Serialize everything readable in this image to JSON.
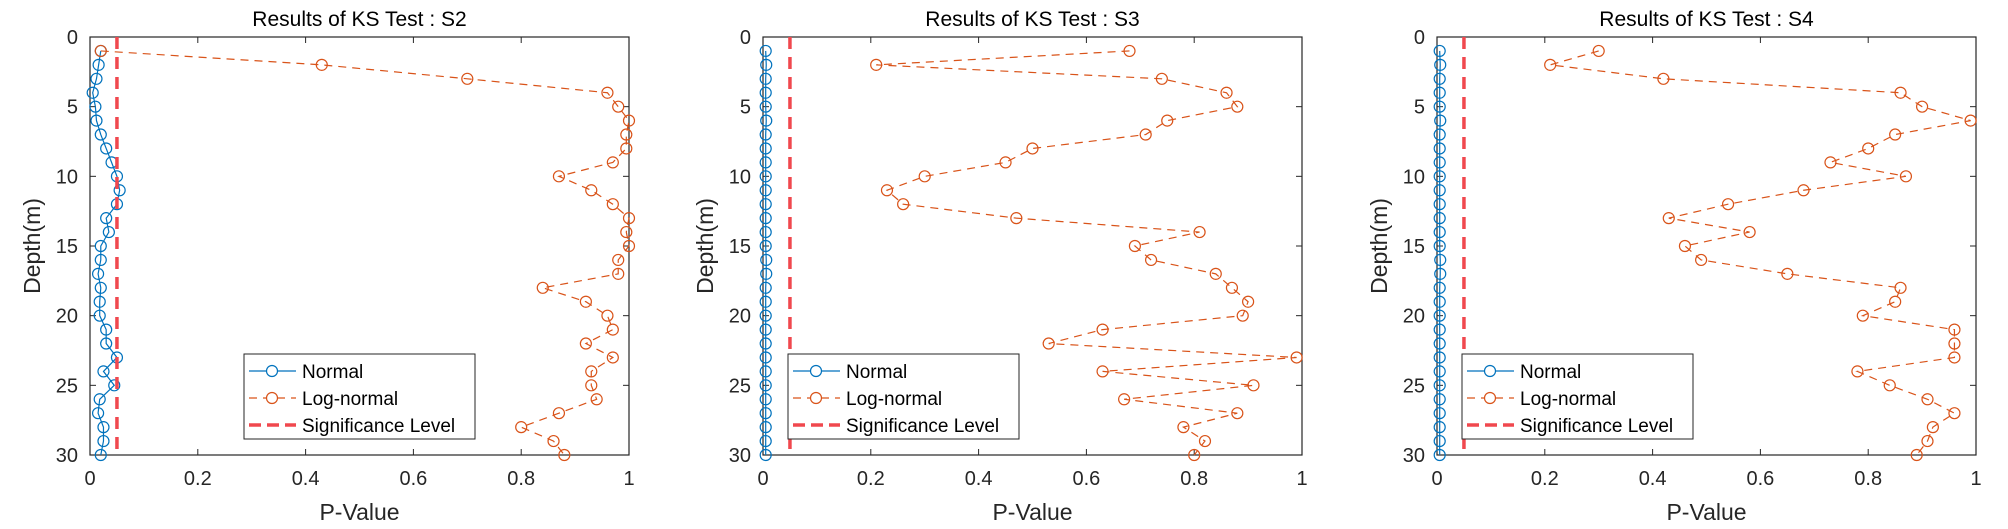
{
  "chart_data": [
    {
      "type": "line",
      "title": "Results of KS Test : S2",
      "xlabel": "P-Value",
      "ylabel": "Depth(m)",
      "xlim": [
        0,
        1
      ],
      "ylim": [
        0,
        30
      ],
      "y_reversed": true,
      "xticks": [
        "0",
        "0.2",
        "0.4",
        "0.6",
        "0.8",
        "1"
      ],
      "yticks": [
        "0",
        "5",
        "10",
        "15",
        "20",
        "25",
        "30"
      ],
      "legend_position": "bottom-center",
      "depth": [
        1,
        2,
        3,
        4,
        5,
        6,
        7,
        8,
        9,
        10,
        11,
        12,
        13,
        14,
        15,
        16,
        17,
        18,
        19,
        20,
        21,
        22,
        23,
        24,
        25,
        26,
        27,
        28,
        29,
        30
      ],
      "series": [
        {
          "name": "Normal",
          "color": "#0072BD",
          "style": "solid-circle",
          "values": [
            0.02,
            0.016,
            0.012,
            0.005,
            0.01,
            0.012,
            0.02,
            0.03,
            0.04,
            0.05,
            0.055,
            0.05,
            0.03,
            0.035,
            0.02,
            0.02,
            0.015,
            0.02,
            0.018,
            0.018,
            0.03,
            0.03,
            0.05,
            0.025,
            0.045,
            0.018,
            0.015,
            0.025,
            0.025,
            0.02
          ]
        },
        {
          "name": "Log-normal",
          "color": "#D95319",
          "style": "dashed-circle",
          "values": [
            0.02,
            0.43,
            0.7,
            0.96,
            0.98,
            1.0,
            0.995,
            0.995,
            0.97,
            0.87,
            0.93,
            0.97,
            1.0,
            0.995,
            1.0,
            0.98,
            0.98,
            0.84,
            0.92,
            0.96,
            0.97,
            0.92,
            0.97,
            0.93,
            0.93,
            0.94,
            0.87,
            0.8,
            0.86,
            0.88
          ]
        },
        {
          "name": "Significance Level",
          "color": "#F0484E",
          "style": "dashed",
          "value": 0.05
        }
      ]
    },
    {
      "type": "line",
      "title": "Results of KS Test : S3",
      "xlabel": "P-Value",
      "ylabel": "Depth(m)",
      "xlim": [
        0,
        1
      ],
      "ylim": [
        0,
        30
      ],
      "y_reversed": true,
      "xticks": [
        "0",
        "0.2",
        "0.4",
        "0.6",
        "0.8",
        "1"
      ],
      "yticks": [
        "0",
        "5",
        "10",
        "15",
        "20",
        "25",
        "30"
      ],
      "legend_position": "bottom-left",
      "depth": [
        1,
        2,
        3,
        4,
        5,
        6,
        7,
        8,
        9,
        10,
        11,
        12,
        13,
        14,
        15,
        16,
        17,
        18,
        19,
        20,
        21,
        22,
        23,
        24,
        25,
        26,
        27,
        28,
        29,
        30
      ],
      "series": [
        {
          "name": "Normal",
          "color": "#0072BD",
          "style": "solid-circle",
          "values": [
            0.005,
            0.006,
            0.005,
            0.005,
            0.005,
            0.006,
            0.005,
            0.005,
            0.005,
            0.005,
            0.005,
            0.005,
            0.005,
            0.005,
            0.005,
            0.006,
            0.006,
            0.005,
            0.005,
            0.005,
            0.005,
            0.005,
            0.005,
            0.005,
            0.005,
            0.005,
            0.005,
            0.005,
            0.005,
            0.005
          ]
        },
        {
          "name": "Log-normal",
          "color": "#D95319",
          "style": "dashed-circle",
          "values": [
            0.68,
            0.21,
            0.74,
            0.86,
            0.88,
            0.75,
            0.71,
            0.5,
            0.45,
            0.3,
            0.23,
            0.26,
            0.47,
            0.81,
            0.69,
            0.72,
            0.84,
            0.87,
            0.9,
            0.89,
            0.63,
            0.53,
            0.99,
            0.63,
            0.91,
            0.67,
            0.88,
            0.78,
            0.82,
            0.8
          ]
        },
        {
          "name": "Significance Level",
          "color": "#F0484E",
          "style": "dashed",
          "value": 0.05
        }
      ]
    },
    {
      "type": "line",
      "title": "Results of KS Test : S4",
      "xlabel": "P-Value",
      "ylabel": "Depth(m)",
      "xlim": [
        0,
        1
      ],
      "ylim": [
        0,
        30
      ],
      "y_reversed": true,
      "xticks": [
        "0",
        "0.2",
        "0.4",
        "0.6",
        "0.8",
        "1"
      ],
      "yticks": [
        "0",
        "5",
        "10",
        "15",
        "20",
        "25",
        "30"
      ],
      "legend_position": "bottom-left",
      "depth": [
        1,
        2,
        3,
        4,
        5,
        6,
        7,
        8,
        9,
        10,
        11,
        12,
        13,
        14,
        15,
        16,
        17,
        18,
        19,
        20,
        21,
        22,
        23,
        24,
        25,
        26,
        27,
        28,
        29,
        30
      ],
      "series": [
        {
          "name": "Normal",
          "color": "#0072BD",
          "style": "solid-circle",
          "values": [
            0.005,
            0.006,
            0.005,
            0.005,
            0.005,
            0.006,
            0.005,
            0.005,
            0.005,
            0.005,
            0.005,
            0.005,
            0.005,
            0.005,
            0.005,
            0.006,
            0.006,
            0.005,
            0.005,
            0.005,
            0.005,
            0.005,
            0.005,
            0.005,
            0.005,
            0.005,
            0.005,
            0.005,
            0.005,
            0.005
          ]
        },
        {
          "name": "Log-normal",
          "color": "#D95319",
          "style": "dashed-circle",
          "values": [
            0.3,
            0.21,
            0.42,
            0.86,
            0.9,
            0.99,
            0.85,
            0.8,
            0.73,
            0.87,
            0.68,
            0.54,
            0.43,
            0.58,
            0.46,
            0.49,
            0.65,
            0.86,
            0.85,
            0.79,
            0.96,
            0.96,
            0.96,
            0.78,
            0.84,
            0.91,
            0.96,
            0.92,
            0.91,
            0.89
          ]
        },
        {
          "name": "Significance Level",
          "color": "#F0484E",
          "style": "dashed",
          "value": 0.05
        }
      ]
    }
  ]
}
